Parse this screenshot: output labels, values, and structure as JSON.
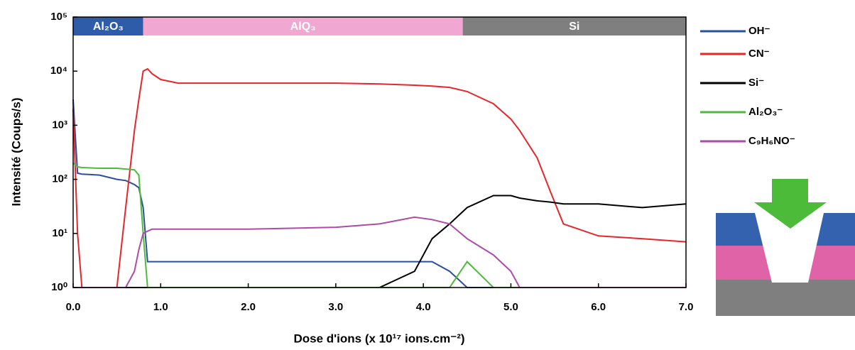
{
  "chart_data": {
    "type": "line",
    "ylabel": "Intensité (Coups/s)",
    "xlabel": "Dose d'ions (x 10¹⁷ ions.cm⁻²)",
    "ylog": true,
    "xlim": [
      0,
      7
    ],
    "ylim": [
      1,
      100000
    ],
    "xticks": [
      {
        "value": 0,
        "label": "0.0"
      },
      {
        "value": 1,
        "label": "1.0"
      },
      {
        "value": 2,
        "label": "2.0"
      },
      {
        "value": 3,
        "label": "3.0"
      },
      {
        "value": 4,
        "label": "4.0"
      },
      {
        "value": 5,
        "label": "5.0"
      },
      {
        "value": 6,
        "label": "6.0"
      },
      {
        "value": 7,
        "label": "7.0"
      }
    ],
    "yticks": [
      {
        "value": 1,
        "label": "10⁰"
      },
      {
        "value": 10,
        "label": "10¹"
      },
      {
        "value": 100,
        "label": "10²"
      },
      {
        "value": 1000,
        "label": "10³"
      },
      {
        "value": 10000,
        "label": "10⁴"
      },
      {
        "value": 100000,
        "label": "10⁵"
      }
    ],
    "regions": [
      {
        "name": "Al₂O₃",
        "start": 0,
        "end": 0.8,
        "color": "#2e5ca8"
      },
      {
        "name": "AlQ₃",
        "start": 0.8,
        "end": 4.45,
        "color": "#f0a8d2"
      },
      {
        "name": "Si",
        "start": 4.45,
        "end": 7,
        "color": "#7f7f7f"
      }
    ],
    "x": [
      0,
      0.05,
      0.1,
      0.3,
      0.5,
      0.6,
      0.7,
      0.75,
      0.8,
      0.85,
      0.9,
      1.0,
      1.2,
      2.0,
      3.0,
      3.5,
      3.9,
      4.1,
      4.3,
      4.5,
      4.8,
      5.0,
      5.1,
      5.3,
      5.45,
      5.6,
      6.0,
      6.5,
      7.0
    ],
    "series": [
      {
        "name": "OH⁻",
        "color": "#2a4fa0",
        "values": [
          3000,
          130,
          125,
          120,
          100,
          95,
          80,
          70,
          30,
          3,
          3,
          3,
          3,
          3,
          3,
          3,
          3,
          3,
          2,
          1,
          1,
          1,
          1,
          1,
          1,
          1,
          1,
          1,
          1
        ]
      },
      {
        "name": "CN⁻",
        "color": "#e8262a",
        "values": [
          2000,
          10,
          1,
          1,
          1,
          30,
          800,
          3000,
          10000,
          11000,
          9000,
          7000,
          6000,
          6000,
          6000,
          5800,
          5500,
          5300,
          5000,
          4200,
          2500,
          1300,
          800,
          250,
          60,
          15,
          9,
          8,
          7
        ]
      },
      {
        "name": "Si⁻",
        "color": "#000000",
        "values": [
          1,
          1,
          1,
          1,
          1,
          1,
          1,
          1,
          1,
          1,
          1,
          1,
          1,
          1,
          1,
          1,
          2,
          8,
          15,
          30,
          50,
          50,
          45,
          40,
          38,
          35,
          35,
          30,
          35
        ]
      },
      {
        "name": "Al₂O₃⁻",
        "color": "#4cbb3a",
        "values": [
          200,
          170,
          165,
          160,
          160,
          155,
          150,
          120,
          10,
          1,
          1,
          1,
          1,
          1,
          1,
          1,
          1,
          1,
          1,
          3,
          1,
          1,
          1,
          1,
          1,
          1,
          1,
          1,
          1
        ]
      },
      {
        "name": "C₉H₆NO⁻",
        "color": "#b04aa8",
        "values": [
          1,
          1,
          1,
          1,
          1,
          1,
          2,
          5,
          10,
          11,
          12,
          12,
          12,
          12,
          13,
          15,
          20,
          18,
          15,
          8,
          4,
          2,
          1,
          1,
          1,
          1,
          1,
          1,
          1
        ]
      }
    ]
  }
}
